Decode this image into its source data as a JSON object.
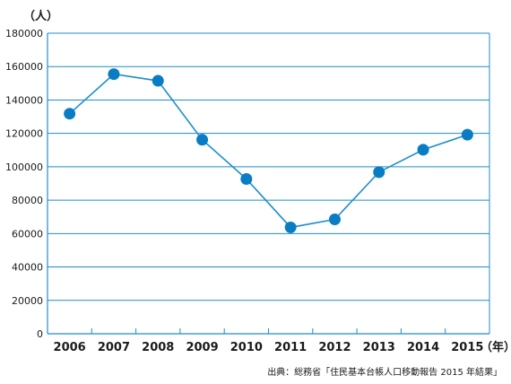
{
  "colors": {
    "axis": "#1e8ec9",
    "grid": "#1e8ec9",
    "line": "#1e8ec9",
    "marker": "#0a7cc4",
    "text": "#1a1a1a"
  },
  "chart_data": {
    "type": "line",
    "title": "",
    "ylabel": "（人）",
    "xlabel": "（年）",
    "categories": [
      "2006",
      "2007",
      "2008",
      "2009",
      "2010",
      "2011",
      "2012",
      "2013",
      "2014",
      "2015"
    ],
    "values": [
      131800,
      155500,
      151500,
      116200,
      92700,
      63700,
      68500,
      96800,
      110200,
      119200
    ],
    "ylim": [
      0,
      180000
    ],
    "yticks": [
      "0",
      "20000",
      "40000",
      "60000",
      "80000",
      "100000",
      "120000",
      "140000",
      "160000",
      "180000"
    ],
    "grid": true,
    "legend": "none"
  },
  "source_note": "出典：総務省「住民基本台帳人口移動報告 2015 年結果」"
}
